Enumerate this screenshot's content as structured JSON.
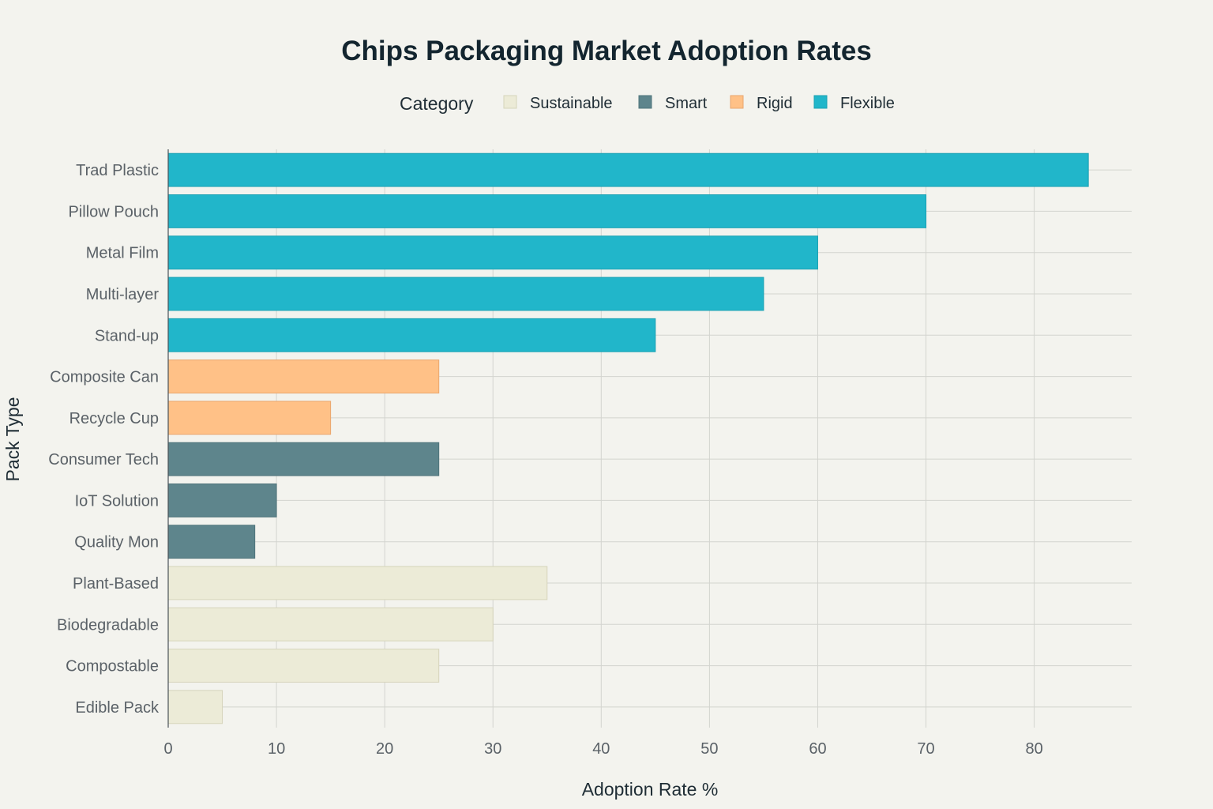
{
  "chart_data": {
    "type": "bar",
    "orientation": "horizontal",
    "title": "Chips Packaging Market Adoption Rates",
    "xlabel": "Adoption Rate %",
    "ylabel": "Pack Type",
    "xlim": [
      0,
      89
    ],
    "x_ticks": [
      0,
      10,
      20,
      30,
      40,
      50,
      60,
      70,
      80
    ],
    "grid": true,
    "legend": {
      "title": "Category",
      "placement": "top-center",
      "entries": [
        {
          "name": "Sustainable",
          "color": "#ecebd7",
          "border": "#d6d4bb"
        },
        {
          "name": "Smart",
          "color": "#5e858c",
          "border": "#4f747b"
        },
        {
          "name": "Rigid",
          "color": "#ffc187",
          "border": "#eaa66d"
        },
        {
          "name": "Flexible",
          "color": "#21b6ca",
          "border": "#1aa1b3"
        }
      ]
    },
    "bars": [
      {
        "label": "Trad Plastic",
        "value": 85,
        "category": "Flexible"
      },
      {
        "label": "Pillow Pouch",
        "value": 70,
        "category": "Flexible"
      },
      {
        "label": "Metal Film",
        "value": 60,
        "category": "Flexible"
      },
      {
        "label": "Multi-layer",
        "value": 55,
        "category": "Flexible"
      },
      {
        "label": "Stand-up",
        "value": 45,
        "category": "Flexible"
      },
      {
        "label": "Composite Can",
        "value": 25,
        "category": "Rigid"
      },
      {
        "label": "Recycle Cup",
        "value": 15,
        "category": "Rigid"
      },
      {
        "label": "Consumer Tech",
        "value": 25,
        "category": "Smart"
      },
      {
        "label": "IoT Solution",
        "value": 10,
        "category": "Smart"
      },
      {
        "label": "Quality Mon",
        "value": 8,
        "category": "Smart"
      },
      {
        "label": "Plant-Based",
        "value": 35,
        "category": "Sustainable"
      },
      {
        "label": "Biodegradable",
        "value": 30,
        "category": "Sustainable"
      },
      {
        "label": "Compostable",
        "value": 25,
        "category": "Sustainable"
      },
      {
        "label": "Edible Pack",
        "value": 5,
        "category": "Sustainable"
      }
    ]
  }
}
